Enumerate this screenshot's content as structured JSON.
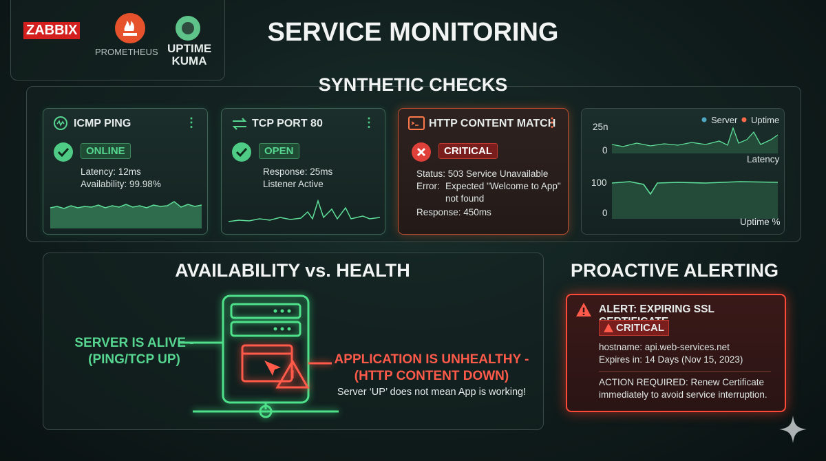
{
  "logos": {
    "zabbix": "ZABBIX",
    "prometheus": "PROMETHEUS",
    "uptime_kuma": [
      "UPTIME",
      "KUMA"
    ]
  },
  "header": {
    "title": "SERVICE MONITORING"
  },
  "synthetic_checks": {
    "title": "SYNTHETIC CHECKS",
    "cards": [
      {
        "title": "ICMP PING",
        "status": "ONLINE",
        "lines": [
          "Latency: 12ms",
          "Availability: 99.98%"
        ]
      },
      {
        "title": "TCP PORT 80",
        "status": "OPEN",
        "lines": [
          "Response: 25ms",
          "Listener Active"
        ]
      },
      {
        "title": "HTTP CONTENT MATCH",
        "status": "CRITICAL",
        "lines": [
          "Status: 503 Service Unavailable",
          "Error:",
          "Expected \"Welcome to App\"",
          "not found",
          "Response: 450ms"
        ]
      }
    ],
    "graph": {
      "legend": [
        "Server",
        "Uptime"
      ],
      "latency": {
        "label": "Latency",
        "ticks": [
          "25n",
          "0"
        ]
      },
      "uptime": {
        "label": "Uptime %",
        "ticks": [
          "100",
          "0"
        ]
      }
    }
  },
  "health": {
    "title": "AVAILABILITY vs. HEALTH",
    "left": [
      "SERVER IS ALIVE -",
      "(PING/TCP UP)"
    ],
    "right": [
      "APPLICATION IS UNHEALTHY -",
      "(HTTP CONTENT DOWN)"
    ],
    "note": "Server ‘UP’ does not mean App is working!"
  },
  "alerting": {
    "title": "PROACTIVE ALERTING",
    "alert": {
      "title": "ALERT: EXPIRING SSL CERTIFICATE",
      "severity": "CRITICAL",
      "lines": [
        "hostname: api.web-services.net",
        "Expires in: 14 Days (Nov 15, 2023)"
      ],
      "action": [
        "ACTION REQUIRED: Renew Certificate",
        "immediately to avoid service interruption."
      ]
    }
  }
}
